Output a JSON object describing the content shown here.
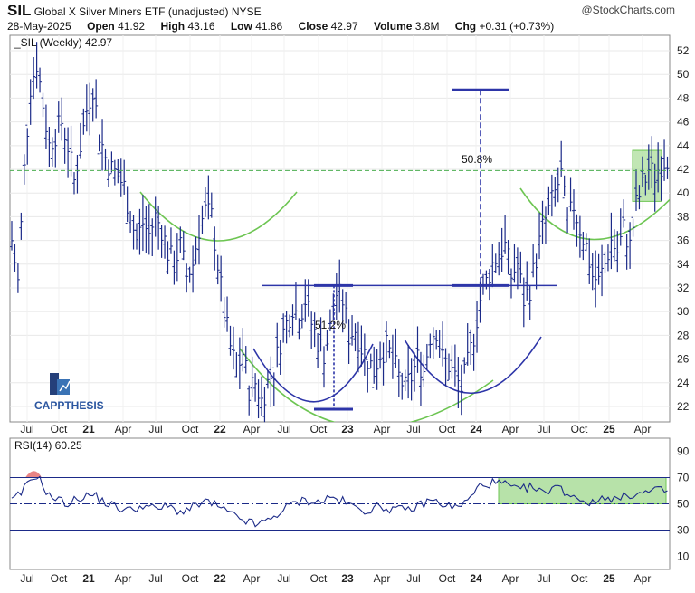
{
  "header": {
    "symbol": "SIL",
    "name": "Global X Silver Miners ETF (unadjusted)",
    "exchange": "NYSE",
    "date": "28-May-2025",
    "open_label": "Open",
    "open": "41.92",
    "high_label": "High",
    "high": "43.16",
    "low_label": "Low",
    "low": "41.86",
    "close_label": "Close",
    "close": "42.97",
    "volume_label": "Volume",
    "volume": "3.8M",
    "chg_label": "Chg",
    "chg": "+0.31 (+0.73%)",
    "source": "@StockCharts.com"
  },
  "chart_data": [
    {
      "type": "bar",
      "legend": "_SIL (Weekly) 42.97",
      "price_y_ticks": [
        22,
        24,
        26,
        28,
        30,
        32,
        34,
        36,
        38,
        40,
        42,
        44,
        46,
        48,
        50,
        52
      ],
      "ylim": [
        20.7,
        53.3
      ],
      "x_ticks": [
        "Jul",
        "Oct",
        "21",
        "Apr",
        "Jul",
        "Oct",
        "22",
        "Apr",
        "Jul",
        "Oct",
        "23",
        "Apr",
        "Jul",
        "Oct",
        "24",
        "Apr",
        "Jul",
        "Oct",
        "25",
        "Apr"
      ],
      "annotations": {
        "measure_left": "51.2%",
        "measure_right": "50.8%",
        "neckline_level": 32.2,
        "breakout_level": 41.9,
        "measured_target": 48.7,
        "watermark": "CAPPTHESIS"
      },
      "anchors": [
        [
          0,
          36.0
        ],
        [
          2,
          32.5
        ],
        [
          4,
          42.0
        ],
        [
          6,
          49.0
        ],
        [
          8,
          51.0
        ],
        [
          10,
          47.5
        ],
        [
          12,
          44.0
        ],
        [
          14,
          45.0
        ],
        [
          16,
          46.0
        ],
        [
          18,
          44.0
        ],
        [
          20,
          41.0
        ],
        [
          22,
          44.0
        ],
        [
          24,
          47.0
        ],
        [
          26,
          49.0
        ],
        [
          28,
          45.0
        ],
        [
          30,
          43.0
        ],
        [
          32,
          42.0
        ],
        [
          34,
          41.5
        ],
        [
          36,
          40.5
        ],
        [
          38,
          38.0
        ],
        [
          40,
          36.0
        ],
        [
          42,
          37.5
        ],
        [
          44,
          36.5
        ],
        [
          46,
          38.0
        ],
        [
          48,
          37.0
        ],
        [
          50,
          35.0
        ],
        [
          52,
          34.0
        ],
        [
          54,
          35.5
        ],
        [
          56,
          33.0
        ],
        [
          58,
          34.0
        ],
        [
          60,
          37.0
        ],
        [
          62,
          38.5
        ],
        [
          64,
          38.0
        ],
        [
          66,
          34.0
        ],
        [
          68,
          30.0
        ],
        [
          70,
          27.0
        ],
        [
          72,
          25.0
        ],
        [
          74,
          26.5
        ],
        [
          76,
          23.5
        ],
        [
          78,
          24.0
        ],
        [
          80,
          22.5
        ],
        [
          82,
          24.0
        ],
        [
          84,
          25.0
        ],
        [
          86,
          27.5
        ],
        [
          88,
          29.0
        ],
        [
          90,
          30.5
        ],
        [
          92,
          29.5
        ],
        [
          94,
          31.0
        ],
        [
          96,
          29.0
        ],
        [
          98,
          27.5
        ],
        [
          100,
          26.5
        ],
        [
          102,
          28.5
        ],
        [
          104,
          31.5
        ],
        [
          106,
          31.0
        ],
        [
          108,
          28.0
        ],
        [
          110,
          28.5
        ],
        [
          112,
          27.0
        ],
        [
          114,
          26.0
        ],
        [
          116,
          25.0
        ],
        [
          118,
          26.5
        ],
        [
          120,
          27.0
        ],
        [
          122,
          26.0
        ],
        [
          124,
          24.5
        ],
        [
          126,
          23.5
        ],
        [
          128,
          24.5
        ],
        [
          130,
          26.0
        ],
        [
          132,
          25.0
        ],
        [
          134,
          28.0
        ],
        [
          136,
          28.5
        ],
        [
          138,
          26.0
        ],
        [
          140,
          25.5
        ],
        [
          142,
          24.5
        ],
        [
          144,
          23.5
        ],
        [
          146,
          25.5
        ],
        [
          148,
          28.0
        ],
        [
          150,
          31.0
        ],
        [
          152,
          32.5
        ],
        [
          154,
          34.0
        ],
        [
          156,
          35.0
        ],
        [
          158,
          35.5
        ],
        [
          160,
          33.0
        ],
        [
          162,
          34.0
        ],
        [
          164,
          31.0
        ],
        [
          166,
          32.0
        ],
        [
          168,
          34.5
        ],
        [
          170,
          37.0
        ],
        [
          172,
          38.5
        ],
        [
          174,
          40.0
        ],
        [
          176,
          41.5
        ],
        [
          178,
          37.5
        ],
        [
          180,
          39.0
        ],
        [
          182,
          37.0
        ],
        [
          184,
          35.5
        ],
        [
          186,
          33.0
        ],
        [
          188,
          32.5
        ],
        [
          190,
          34.0
        ],
        [
          192,
          36.0
        ],
        [
          194,
          35.0
        ],
        [
          196,
          37.0
        ],
        [
          198,
          35.5
        ],
        [
          200,
          39.0
        ],
        [
          202,
          40.5
        ],
        [
          204,
          42.0
        ],
        [
          206,
          41.5
        ],
        [
          208,
          42.5
        ],
        [
          210,
          43.0
        ]
      ]
    },
    {
      "type": "line",
      "legend": "RSI(14) 60.25",
      "y_ticks": [
        10,
        30,
        50,
        70,
        90
      ],
      "reference_lines": [
        30,
        50,
        70
      ],
      "ylim": [
        0,
        100
      ],
      "rsi_anchors": [
        [
          0,
          52
        ],
        [
          3,
          58
        ],
        [
          6,
          68
        ],
        [
          8,
          72
        ],
        [
          10,
          64
        ],
        [
          12,
          56
        ],
        [
          15,
          53
        ],
        [
          18,
          50
        ],
        [
          22,
          55
        ],
        [
          26,
          57
        ],
        [
          30,
          51
        ],
        [
          34,
          47
        ],
        [
          38,
          45
        ],
        [
          42,
          49
        ],
        [
          46,
          46
        ],
        [
          50,
          48
        ],
        [
          54,
          44
        ],
        [
          58,
          47
        ],
        [
          62,
          52
        ],
        [
          66,
          48
        ],
        [
          70,
          42
        ],
        [
          74,
          38
        ],
        [
          78,
          34
        ],
        [
          82,
          37
        ],
        [
          86,
          44
        ],
        [
          90,
          50
        ],
        [
          94,
          53
        ],
        [
          98,
          51
        ],
        [
          102,
          55
        ],
        [
          106,
          52
        ],
        [
          110,
          47
        ],
        [
          114,
          45
        ],
        [
          118,
          48
        ],
        [
          122,
          46
        ],
        [
          126,
          45
        ],
        [
          130,
          48
        ],
        [
          134,
          53
        ],
        [
          138,
          50
        ],
        [
          142,
          47
        ],
        [
          146,
          52
        ],
        [
          150,
          64
        ],
        [
          154,
          66
        ],
        [
          158,
          65
        ],
        [
          162,
          60
        ],
        [
          166,
          63
        ],
        [
          170,
          58
        ],
        [
          174,
          64
        ],
        [
          178,
          58
        ],
        [
          182,
          54
        ],
        [
          186,
          50
        ],
        [
          190,
          56
        ],
        [
          194,
          53
        ],
        [
          198,
          57
        ],
        [
          202,
          58
        ],
        [
          206,
          60
        ],
        [
          210,
          60
        ]
      ]
    }
  ]
}
